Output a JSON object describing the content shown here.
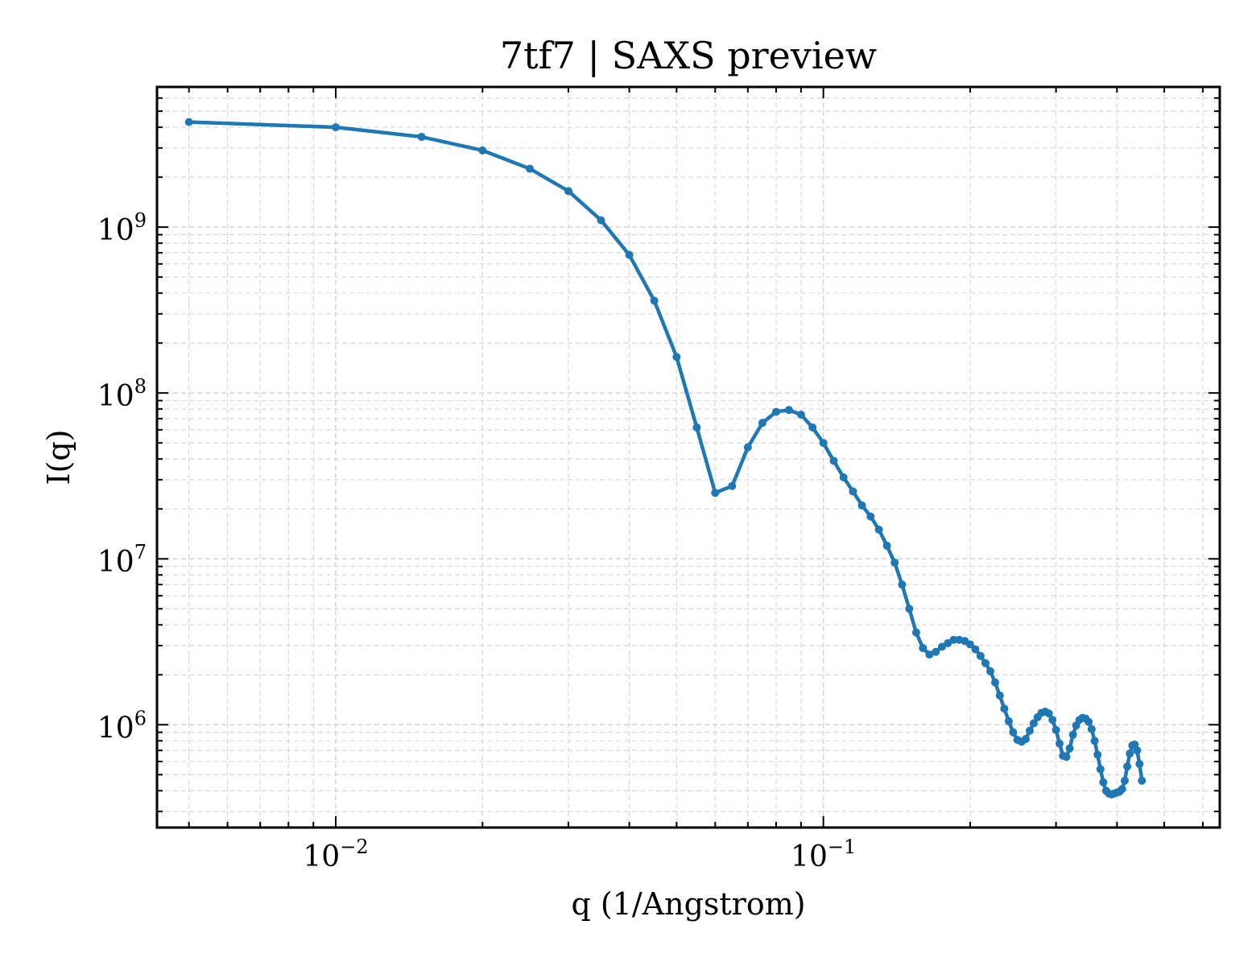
{
  "chart_data": {
    "type": "line",
    "title": "7tf7 | SAXS preview",
    "xlabel": "q (1/Angstrom)",
    "ylabel": "I(q)",
    "xscale": "log",
    "yscale": "log",
    "xlim": [
      0.0043,
      0.65
    ],
    "ylim": [
      240000,
      7000000000
    ],
    "grid": true,
    "legend": "none",
    "x_ticks": [
      {
        "base": "10",
        "exp": "−2",
        "value": 0.01
      },
      {
        "base": "10",
        "exp": "−1",
        "value": 0.1
      }
    ],
    "y_ticks": [
      {
        "base": "10",
        "exp": "6",
        "value": 1000000
      },
      {
        "base": "10",
        "exp": "7",
        "value": 10000000
      },
      {
        "base": "10",
        "exp": "8",
        "value": 100000000
      },
      {
        "base": "10",
        "exp": "9",
        "value": 1000000000
      }
    ],
    "series_color": "#1f77b4",
    "series": [
      {
        "points": [
          [
            0.005,
            4300000000.0
          ],
          [
            0.01,
            4000000000.0
          ],
          [
            0.015,
            3500000000.0
          ],
          [
            0.02,
            2900000000.0
          ],
          [
            0.025,
            2250000000.0
          ],
          [
            0.03,
            1650000000.0
          ],
          [
            0.035,
            1100000000.0
          ],
          [
            0.04,
            680000000.0
          ],
          [
            0.045,
            360000000.0
          ],
          [
            0.05,
            165000000.0
          ],
          [
            0.055,
            62000000.0
          ],
          [
            0.06,
            25000000.0
          ],
          [
            0.065,
            27500000.0
          ],
          [
            0.07,
            47000000.0
          ],
          [
            0.075,
            66000000.0
          ],
          [
            0.08,
            77000000.0
          ],
          [
            0.085,
            79000000.0
          ],
          [
            0.09,
            74000000.0
          ],
          [
            0.095,
            62000000.0
          ],
          [
            0.1,
            50000000.0
          ],
          [
            0.105,
            39000000.0
          ],
          [
            0.11,
            31000000.0
          ],
          [
            0.115,
            25500000.0
          ],
          [
            0.12,
            21000000.0
          ],
          [
            0.125,
            18000000.0
          ],
          [
            0.13,
            15000000.0
          ],
          [
            0.135,
            12000000.0
          ],
          [
            0.14,
            9500000.0
          ],
          [
            0.145,
            7000000.0
          ],
          [
            0.15,
            5000000.0
          ],
          [
            0.155,
            3600000.0
          ],
          [
            0.16,
            2900000.0
          ],
          [
            0.165,
            2650000.0
          ],
          [
            0.17,
            2750000.0
          ],
          [
            0.175,
            2950000.0
          ],
          [
            0.18,
            3100000.0
          ],
          [
            0.185,
            3250000.0
          ],
          [
            0.19,
            3250000.0
          ],
          [
            0.195,
            3200000.0
          ],
          [
            0.2,
            3050000.0
          ],
          [
            0.205,
            2850000.0
          ],
          [
            0.21,
            2600000.0
          ],
          [
            0.215,
            2350000.0
          ],
          [
            0.22,
            2100000.0
          ],
          [
            0.225,
            1800000.0
          ],
          [
            0.23,
            1500000.0
          ],
          [
            0.235,
            1250000.0
          ],
          [
            0.24,
            1050000.0
          ],
          [
            0.245,
            900000.0
          ],
          [
            0.25,
            810000.0
          ],
          [
            0.255,
            790000.0
          ],
          [
            0.26,
            820000.0
          ],
          [
            0.265,
            920000.0
          ],
          [
            0.27,
            1020000.0
          ],
          [
            0.275,
            1110000.0
          ],
          [
            0.28,
            1180000.0
          ],
          [
            0.285,
            1200000.0
          ],
          [
            0.29,
            1170000.0
          ],
          [
            0.295,
            1070000.0
          ],
          [
            0.3,
            930000.0
          ],
          [
            0.305,
            770000.0
          ],
          [
            0.31,
            650000.0
          ],
          [
            0.315,
            640000.0
          ],
          [
            0.32,
            720000.0
          ],
          [
            0.325,
            870000.0
          ],
          [
            0.33,
            990000.0
          ],
          [
            0.335,
            1070000.0
          ],
          [
            0.34,
            1100000.0
          ],
          [
            0.345,
            1090000.0
          ],
          [
            0.35,
            1040000.0
          ],
          [
            0.355,
            940000.0
          ],
          [
            0.36,
            800000.0
          ],
          [
            0.365,
            660000.0
          ],
          [
            0.37,
            540000.0
          ],
          [
            0.375,
            450000.0
          ],
          [
            0.38,
            400000.0
          ],
          [
            0.385,
            385000.0
          ],
          [
            0.39,
            380000.0
          ],
          [
            0.395,
            385000.0
          ],
          [
            0.4,
            390000.0
          ],
          [
            0.405,
            395000.0
          ],
          [
            0.41,
            410000.0
          ],
          [
            0.415,
            460000.0
          ],
          [
            0.42,
            560000.0
          ],
          [
            0.425,
            670000.0
          ],
          [
            0.43,
            750000.0
          ],
          [
            0.435,
            760000.0
          ],
          [
            0.44,
            700000.0
          ],
          [
            0.445,
            580000.0
          ],
          [
            0.45,
            460000.0
          ]
        ]
      }
    ]
  }
}
